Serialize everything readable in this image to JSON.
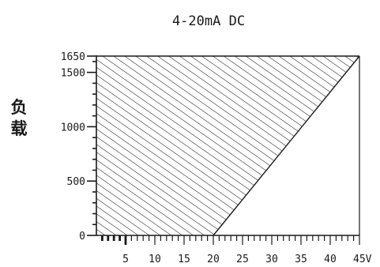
{
  "chart_data": {
    "type": "area",
    "title": "4-20mA DC",
    "ylabel": "负载",
    "xlabel": "",
    "x_unit": "V",
    "x_tick_labels": [
      "5",
      "10",
      "15",
      "20",
      "25",
      "30",
      "35",
      "40",
      "45V"
    ],
    "x_ticks": [
      5,
      10,
      15,
      20,
      25,
      30,
      35,
      40,
      45
    ],
    "y_tick_labels": [
      "0",
      "500",
      "1000",
      "1500",
      "1650"
    ],
    "y_ticks": [
      0,
      500,
      1000,
      1500,
      1650
    ],
    "xlim": [
      0,
      45
    ],
    "ylim": [
      0,
      1650
    ],
    "x_minor_step": 1,
    "y_minor_step": 100,
    "region": {
      "name": "",
      "fill": "diagonal-hatch",
      "polygon": [
        [
          0,
          0
        ],
        [
          20,
          0
        ],
        [
          45,
          1650
        ],
        [
          0,
          1650
        ]
      ]
    },
    "boundary_line": {
      "x": [
        20,
        45
      ],
      "y": [
        0,
        1650
      ]
    },
    "colors": {
      "line": "#1a1a1a",
      "hatch": "#1a1a1a",
      "background": "#ffffff"
    }
  }
}
